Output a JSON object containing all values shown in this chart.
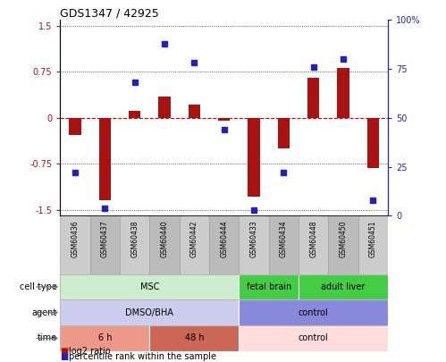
{
  "title": "GDS1347 / 42925",
  "samples": [
    "GSM60436",
    "GSM60437",
    "GSM60438",
    "GSM60440",
    "GSM60442",
    "GSM60444",
    "GSM60433",
    "GSM60434",
    "GSM60448",
    "GSM60450",
    "GSM60451"
  ],
  "log2_ratio": [
    -0.28,
    -1.35,
    0.12,
    0.35,
    0.22,
    -0.05,
    -1.28,
    -0.5,
    0.65,
    0.82,
    -0.82
  ],
  "percentile_rank": [
    22,
    4,
    68,
    88,
    78,
    44,
    3,
    22,
    76,
    80,
    8
  ],
  "bar_color": "#aa1111",
  "dot_color": "#2222bb",
  "ylim": [
    -1.6,
    1.6
  ],
  "y_left_ticks": [
    -1.5,
    -0.75,
    0,
    0.75,
    1.5
  ],
  "y_right_ticks": [
    0,
    25,
    50,
    75,
    100
  ],
  "y_right_labels": [
    "0",
    "25",
    "50",
    "75",
    "100%"
  ],
  "hline_color": "#cc0000",
  "dotted_color": "black",
  "cell_type_groups": [
    {
      "label": "MSC",
      "start": 0,
      "end": 6,
      "color": "#cceecc"
    },
    {
      "label": "fetal brain",
      "start": 6,
      "end": 8,
      "color": "#44cc44"
    },
    {
      "label": "adult liver",
      "start": 8,
      "end": 11,
      "color": "#44cc44"
    }
  ],
  "agent_groups": [
    {
      "label": "DMSO/BHA",
      "start": 0,
      "end": 6,
      "color": "#ccccee"
    },
    {
      "label": "control",
      "start": 6,
      "end": 11,
      "color": "#8888dd"
    }
  ],
  "time_groups": [
    {
      "label": "6 h",
      "start": 0,
      "end": 3,
      "color": "#ee9988"
    },
    {
      "label": "48 h",
      "start": 3,
      "end": 6,
      "color": "#cc6655"
    },
    {
      "label": "control",
      "start": 6,
      "end": 11,
      "color": "#ffdddd"
    }
  ],
  "row_labels": [
    "cell type",
    "agent",
    "time"
  ],
  "legend_red": "log2 ratio",
  "legend_blue": "percentile rank within the sample",
  "bar_width": 0.4,
  "col_colors": [
    "#cccccc",
    "#bbbbbb"
  ]
}
